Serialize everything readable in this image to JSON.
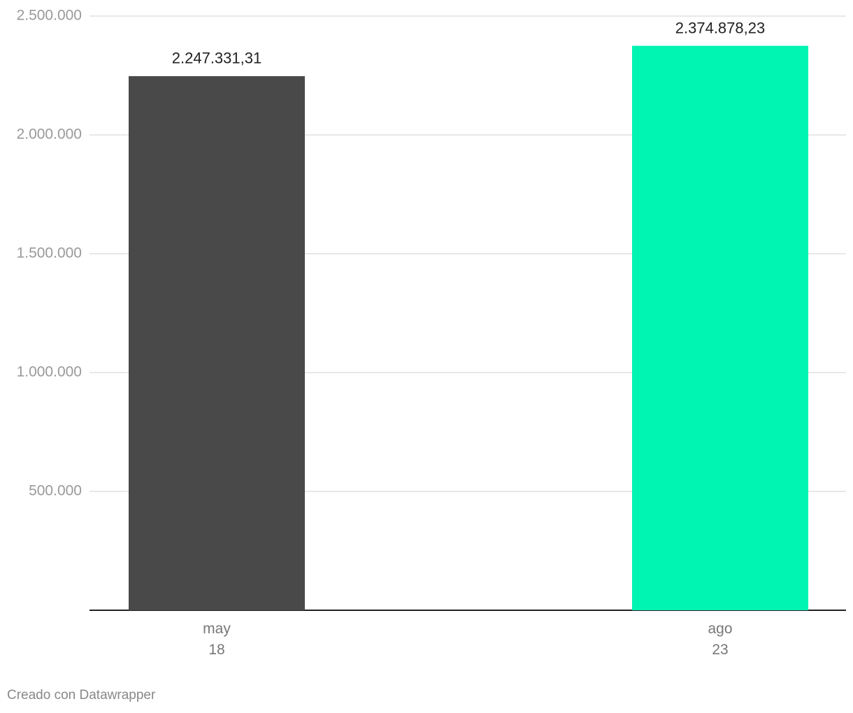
{
  "chart_data": {
    "type": "bar",
    "categories": [
      "may\n18",
      "ago\n23"
    ],
    "values": [
      2247331.31,
      2374878.23
    ],
    "value_labels": [
      "2.247.331,31",
      "2.374.878,23"
    ],
    "colors": [
      "#494949",
      "#00f4b2"
    ],
    "ylim": [
      0,
      2500000
    ],
    "yticks": [
      {
        "value": 500000,
        "label": "500.000"
      },
      {
        "value": 1000000,
        "label": "1.000.000"
      },
      {
        "value": 1500000,
        "label": "1.500.000"
      },
      {
        "value": 2000000,
        "label": "2.000.000"
      },
      {
        "value": 2500000,
        "label": "2.500.000"
      }
    ],
    "grid": true,
    "footer": "Creado con Datawrapper"
  }
}
